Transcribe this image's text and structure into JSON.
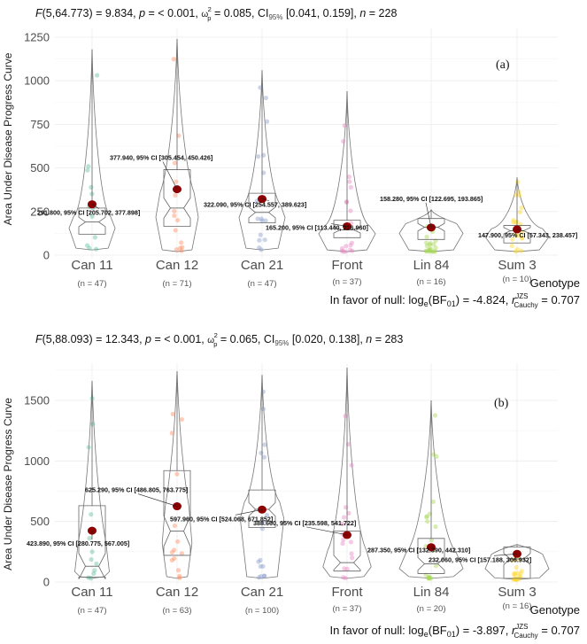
{
  "chart_data": [
    {
      "type": "violin-box",
      "panel_label": "(a)",
      "subtitle": "F(5,64.773) = 9.834, p = < 0.001, ω²p = 0.085, CI95% [0.041, 0.159], n = 228",
      "subtitle_parts": {
        "F": "F",
        "f_args": "(5,64.773) = 9.834, ",
        "p": "p",
        "p_val": " = < 0.001, ",
        "omega": "ω",
        "omega_sup": "2",
        "omega_sub": "p",
        "omega_val": " = 0.085, CI",
        "ci_sub": "95%",
        "ci_val": " [0.041, 0.159], ",
        "n": "n",
        "n_val": " = 228"
      },
      "ylabel": "Area Under Disease Progress Curve",
      "xlabel": "Genotype",
      "ylim": [
        0,
        1250
      ],
      "yticks": [
        0,
        250,
        500,
        750,
        1000,
        1250
      ],
      "grid": true,
      "categories": [
        "Can 11",
        "Can 12",
        "Can 21",
        "Front",
        "Lin 84",
        "Sum 3"
      ],
      "n_labels": [
        "(n = 47)",
        "(n = 71)",
        "(n = 47)",
        "(n = 37)",
        "(n = 16)",
        "(n = 10)"
      ],
      "means": [
        291.8,
        377.94,
        322.09,
        165.2,
        158.28,
        147.9
      ],
      "mean_labels": [
        "291.800, 95% CI [205.702, 377.898]",
        "377.940, 95% CI [305.454, 450.426]",
        "322.090, 95% CI [254.557, 389.623]",
        "165.200, 95% CI [113.440, 216.960]",
        "158.280, 95% CI [122.695, 193.865]",
        "147.900, 95% CI [57.343, 238.457]"
      ],
      "box": [
        {
          "q1": 120,
          "median": 190,
          "q3": 270,
          "min": 30,
          "max": 1180
        },
        {
          "q1": 165,
          "median": 270,
          "q3": 490,
          "min": 20,
          "max": 1240
        },
        {
          "q1": 185,
          "median": 245,
          "q3": 355,
          "min": 30,
          "max": 1060
        },
        {
          "q1": 100,
          "median": 145,
          "q3": 200,
          "min": 20,
          "max": 940
        },
        {
          "q1": 90,
          "median": 160,
          "q3": 210,
          "min": 20,
          "max": 260
        },
        {
          "q1": 70,
          "median": 140,
          "q3": 170,
          "min": 20,
          "max": 445
        }
      ],
      "colors": [
        "#66c2a5",
        "#fc8d62",
        "#8da0cb",
        "#e78ac3",
        "#a6d854",
        "#ffd92f"
      ],
      "caption": "In favor of null: loge(BF01) = -4.824, rJZS Cauchy = 0.707",
      "caption_parts": {
        "pre": "In favor of null: log",
        "sub_e": "e",
        "bf": "(BF",
        "sub_01": "01",
        "mid": ") = -4.824, ",
        "r": "r",
        "sup": "JZS",
        "sub": "Cauchy",
        "post": " = 0.707"
      }
    },
    {
      "type": "violin-box",
      "panel_label": "(b)",
      "subtitle": "F(5,88.093) = 12.343, p = < 0.001, ω²p = 0.065, CI95% [0.020, 0.138], n = 283",
      "subtitle_parts": {
        "F": "F",
        "f_args": "(5,88.093) = 12.343, ",
        "p": "p",
        "p_val": " = < 0.001, ",
        "omega": "ω",
        "omega_sup": "2",
        "omega_sub": "p",
        "omega_val": " = 0.065, CI",
        "ci_sub": "95%",
        "ci_val": " [0.020, 0.138], ",
        "n": "n",
        "n_val": " = 283"
      },
      "ylabel": "Area Under Disease Progress Curve",
      "xlabel": "Genotype",
      "ylim": [
        0,
        1750
      ],
      "yticks": [
        0,
        500,
        1000,
        1500
      ],
      "grid": true,
      "categories": [
        "Can 11",
        "Can 12",
        "Can 21",
        "Front",
        "Lin 84",
        "Sum 3"
      ],
      "n_labels": [
        "(n = 47)",
        "(n = 63)",
        "(n = 100)",
        "(n = 37)",
        "(n = 20)",
        "(n = 16)"
      ],
      "means": [
        423.89,
        625.29,
        597.96,
        388.66,
        287.35,
        232.06
      ],
      "mean_labels": [
        "423.890, 95% CI [280.775, 567.005]",
        "625.290, 95% CI [486.805, 763.775]",
        "597.960, 95% CI [524.068, 671.852]",
        "388.660, 95% CI [235.598, 541.722]",
        "287.350, 95% CI [132.390, 442.310]",
        "232.060, 95% CI [157.188, 306.932]"
      ],
      "box": [
        {
          "q1": 40,
          "median": 130,
          "q3": 630,
          "min": 30,
          "max": 1660
        },
        {
          "q1": 220,
          "median": 420,
          "q3": 920,
          "min": 30,
          "max": 1740
        },
        {
          "q1": 450,
          "median": 600,
          "q3": 760,
          "min": 30,
          "max": 1710
        },
        {
          "q1": 90,
          "median": 160,
          "q3": 420,
          "min": 30,
          "max": 1770
        },
        {
          "q1": 70,
          "median": 150,
          "q3": 360,
          "min": 30,
          "max": 1500
        },
        {
          "q1": 30,
          "median": 190,
          "q3": 290,
          "min": 20,
          "max": 310
        }
      ],
      "colors": [
        "#66c2a5",
        "#fc8d62",
        "#8da0cb",
        "#e78ac3",
        "#a6d854",
        "#ffd92f"
      ],
      "caption": "In favor of null: loge(BF01) = -3.897, rJZS Cauchy = 0.707",
      "caption_parts": {
        "pre": "In favor of null: log",
        "sub_e": "e",
        "bf": "(BF",
        "sub_01": "01",
        "mid": ") = -3.897, ",
        "r": "r",
        "sup": "JZS",
        "sub": "Cauchy",
        "post": " = 0.707"
      }
    }
  ]
}
